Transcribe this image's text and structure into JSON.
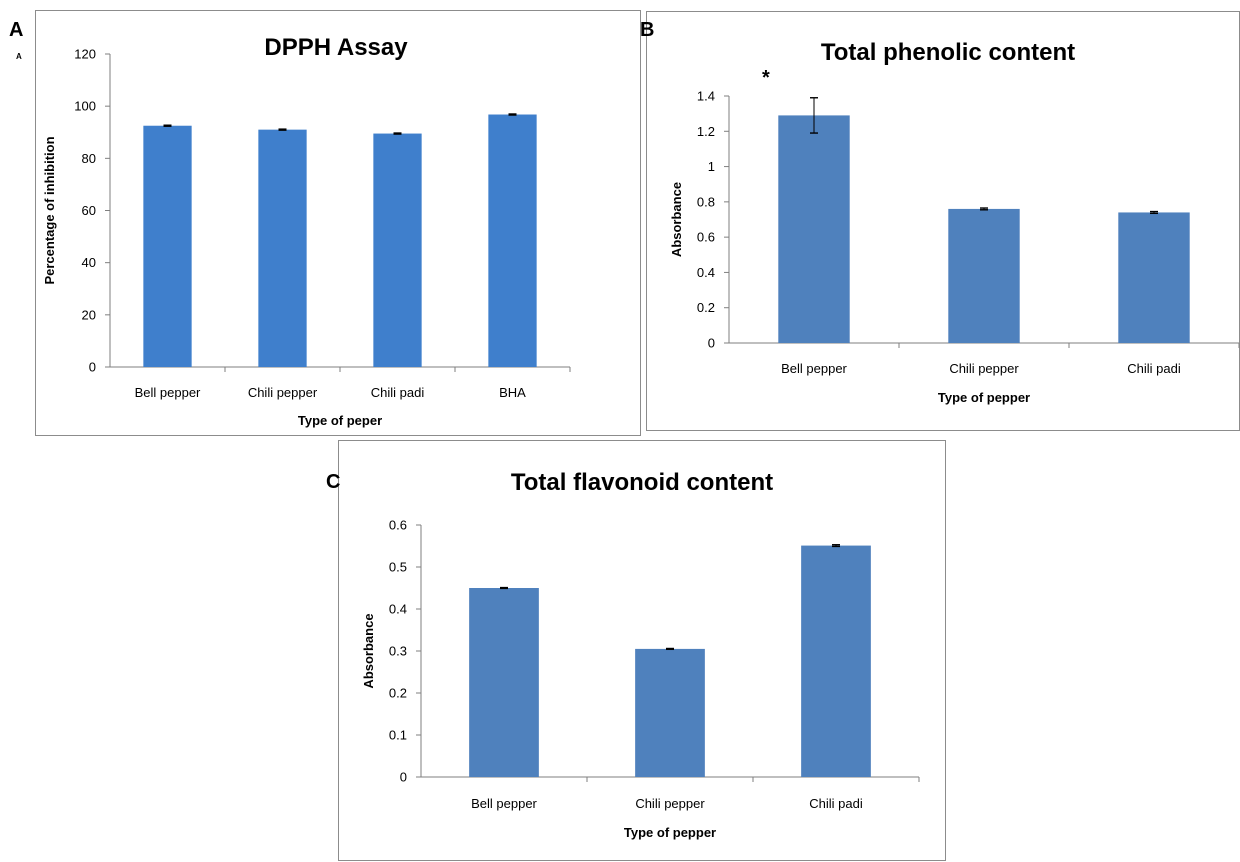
{
  "panels": {
    "a": {
      "letter": "A",
      "sub_letter": "A"
    },
    "b": {
      "letter": "B",
      "annotation": "*"
    },
    "c": {
      "letter": "C"
    }
  },
  "chart_data": [
    {
      "id": "dpph",
      "type": "bar",
      "title": "DPPH Assay",
      "xlabel": "Type of peper",
      "ylabel": "Percentage of inhibition",
      "categories": [
        "Bell pepper",
        "Chili pepper",
        "Chili padi",
        "BHA"
      ],
      "values": [
        92.5,
        91.0,
        89.5,
        96.8
      ],
      "errors": [
        0.2,
        0.2,
        0.2,
        0.2
      ],
      "ylim": [
        0,
        120
      ],
      "yticks": [
        "0",
        "20",
        "40",
        "60",
        "80",
        "100",
        "120"
      ],
      "grid": false,
      "color": "#3f7fcc"
    },
    {
      "id": "phenolic",
      "type": "bar",
      "title": "Total phenolic content",
      "xlabel": "Type of pepper",
      "ylabel": "Absorbance",
      "categories": [
        "Bell pepper",
        "Chili pepper",
        "Chili padi"
      ],
      "values": [
        1.29,
        0.76,
        0.74
      ],
      "errors": [
        0.1,
        0.005,
        0.005
      ],
      "ylim": [
        0,
        1.4
      ],
      "yticks": [
        "0",
        "0.2",
        "0.4",
        "0.6",
        "0.8",
        "1",
        "1.2",
        "1.4"
      ],
      "grid": false,
      "color": "#4f81bd"
    },
    {
      "id": "flavonoid",
      "type": "bar",
      "title": "Total flavonoid content",
      "xlabel": "Type of pepper",
      "ylabel": "Absorbance",
      "categories": [
        "Bell pepper",
        "Chili pepper",
        "Chili padi"
      ],
      "values": [
        0.45,
        0.305,
        0.551
      ],
      "errors": [
        0.001,
        0.001,
        0.002
      ],
      "ylim": [
        0,
        0.6
      ],
      "yticks": [
        "0",
        "0.1",
        "0.2",
        "0.3",
        "0.4",
        "0.5",
        "0.6"
      ],
      "grid": false,
      "color": "#4f81bd"
    }
  ]
}
